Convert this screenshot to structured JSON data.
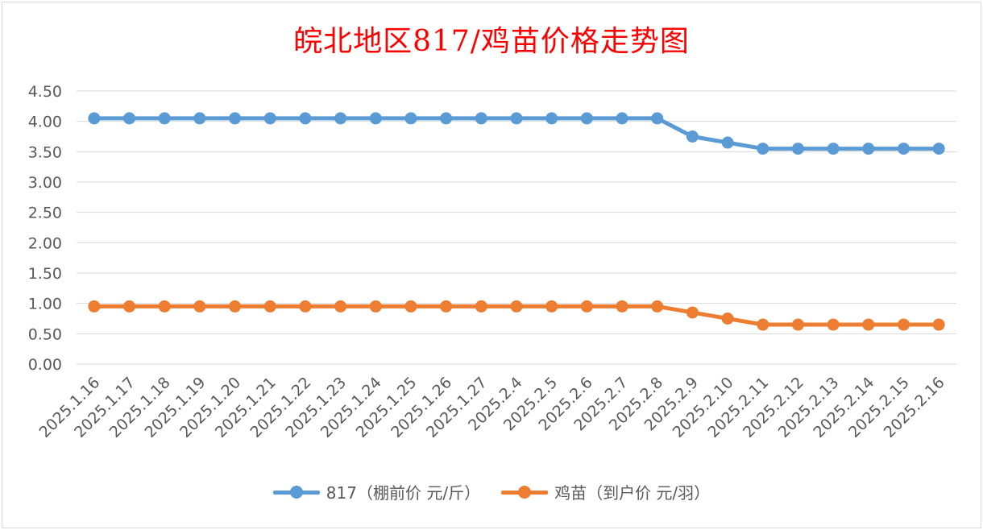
{
  "chart_data": {
    "type": "line",
    "title": "皖北地区817/鸡苗价格走势图",
    "categories": [
      "2025.1.16",
      "2025.1.17",
      "2025.1.18",
      "2025.1.19",
      "2025.1.20",
      "2025.1.21",
      "2025.1.22",
      "2025.1.23",
      "2025.1.24",
      "2025.1.25",
      "2025.1.26",
      "2025.1.27",
      "2025.2.4",
      "2025.2.5",
      "2025.2.6",
      "2025.2.7",
      "2025.2.8",
      "2025.2.9",
      "2025.2.10",
      "2025.2.11",
      "2025.2.12",
      "2025.2.13",
      "2025.2.14",
      "2025.2.15",
      "2025.2.16"
    ],
    "series": [
      {
        "name": "817（棚前价 元/斤）",
        "color": "#5b9bd5",
        "values": [
          4.05,
          4.05,
          4.05,
          4.05,
          4.05,
          4.05,
          4.05,
          4.05,
          4.05,
          4.05,
          4.05,
          4.05,
          4.05,
          4.05,
          4.05,
          4.05,
          4.05,
          3.75,
          3.65,
          3.55,
          3.55,
          3.55,
          3.55,
          3.55,
          3.55
        ]
      },
      {
        "name": "鸡苗（到户价 元/羽）",
        "color": "#ed7d31",
        "values": [
          0.95,
          0.95,
          0.95,
          0.95,
          0.95,
          0.95,
          0.95,
          0.95,
          0.95,
          0.95,
          0.95,
          0.95,
          0.95,
          0.95,
          0.95,
          0.95,
          0.95,
          0.85,
          0.75,
          0.65,
          0.65,
          0.65,
          0.65,
          0.65,
          0.65
        ]
      }
    ],
    "ylim": [
      0,
      4.5
    ],
    "yticks": [
      "0.00",
      "0.50",
      "1.00",
      "1.50",
      "2.00",
      "2.50",
      "3.00",
      "3.50",
      "4.00",
      "4.50"
    ],
    "xlabel": "",
    "ylabel": "",
    "grid": true,
    "legend": "bottom"
  }
}
